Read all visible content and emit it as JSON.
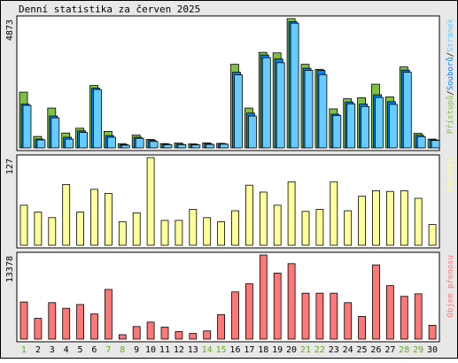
{
  "title": "Denní statistika za červen 2025",
  "days": [
    "1",
    "2",
    "3",
    "4",
    "5",
    "6",
    "7",
    "8",
    "9",
    "10",
    "11",
    "12",
    "13",
    "14",
    "15",
    "16",
    "17",
    "18",
    "19",
    "20",
    "21",
    "22",
    "23",
    "24",
    "25",
    "26",
    "27",
    "28",
    "29",
    "30"
  ],
  "weekend_days": [
    "1",
    "7",
    "8",
    "14",
    "15",
    "21",
    "22",
    "28",
    "29"
  ],
  "colors": {
    "hits": "#80c040",
    "files": "#0080ff",
    "pages": "#66ccff",
    "visits": "#ffff99",
    "kbytes": "#ff7777",
    "weekday_label": "#000000",
    "weekend_label": "#66aa22",
    "frame": "#000000",
    "panel_bg": "#ffffff"
  },
  "chart_data": [
    {
      "type": "bar",
      "name": "top",
      "ytick": "4873",
      "ymax": 4873,
      "legend": [
        "Přístupů",
        "/",
        "Souborů",
        "/",
        "Stránek"
      ],
      "series": [
        {
          "name": "Přístupů",
          "values": [
            2100,
            430,
            1500,
            560,
            740,
            2350,
            620,
            160,
            480,
            320,
            160,
            180,
            150,
            190,
            170,
            3150,
            1500,
            3600,
            3580,
            4873,
            3150,
            2960,
            1470,
            1850,
            1890,
            2400,
            1920,
            3050,
            550,
            330
          ]
        },
        {
          "name": "Souborů",
          "values": [
            1650,
            330,
            1200,
            400,
            640,
            2250,
            460,
            120,
            400,
            280,
            140,
            140,
            130,
            150,
            150,
            2850,
            1310,
            3500,
            3350,
            4760,
            3000,
            2920,
            1270,
            1730,
            1650,
            2000,
            1740,
            2930,
            480,
            300
          ]
        },
        {
          "name": "Stránek",
          "values": [
            1600,
            300,
            1130,
            330,
            580,
            2200,
            400,
            100,
            360,
            240,
            120,
            120,
            110,
            130,
            140,
            2750,
            1200,
            3400,
            3210,
            4700,
            2920,
            2760,
            1220,
            1660,
            1560,
            1900,
            1640,
            2850,
            420,
            280
          ]
        }
      ]
    },
    {
      "type": "bar",
      "name": "visits",
      "ytick": "127",
      "ymax": 127,
      "legend": [
        "Návštěv"
      ],
      "series": [
        {
          "name": "Návštěv",
          "values": [
            58,
            48,
            40,
            88,
            48,
            81,
            75,
            34,
            47,
            127,
            36,
            36,
            52,
            40,
            34,
            50,
            87,
            77,
            58,
            92,
            49,
            52,
            92,
            50,
            71,
            79,
            78,
            79,
            68,
            30
          ]
        }
      ]
    },
    {
      "type": "bar",
      "name": "kbytes",
      "ytick": "13378",
      "ymax": 13378,
      "legend": [
        "Objem přenosu"
      ],
      "series": [
        {
          "name": "Objem přenosu",
          "values": [
            5900,
            3300,
            5800,
            4900,
            5500,
            4000,
            7900,
            700,
            2000,
            2700,
            1900,
            1200,
            900,
            1300,
            3900,
            7500,
            8800,
            13378,
            10500,
            12000,
            7300,
            7300,
            7300,
            5800,
            3600,
            11800,
            8500,
            6800,
            7200,
            2200
          ]
        }
      ]
    }
  ]
}
